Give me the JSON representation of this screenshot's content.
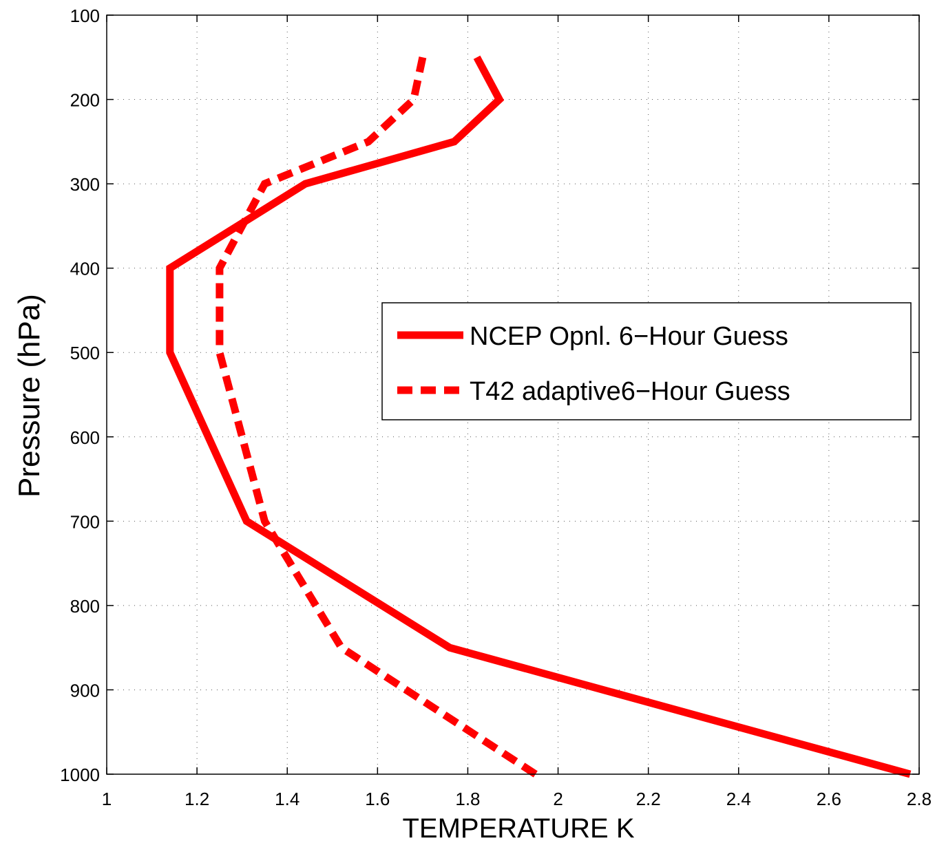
{
  "chart_data": {
    "type": "line",
    "title": "",
    "xlabel": "TEMPERATURE K",
    "ylabel": "Pressure (hPa)",
    "xlim": [
      1,
      2.8
    ],
    "ylim": [
      100,
      1000
    ],
    "y_reversed": true,
    "grid": true,
    "xticks": [
      1,
      1.2,
      1.4,
      1.6,
      1.8,
      2,
      2.2,
      2.4,
      2.6,
      2.8
    ],
    "xtick_labels": [
      "1",
      "1.2",
      "1.4",
      "1.6",
      "1.8",
      "2",
      "2.2",
      "2.4",
      "2.6",
      "2.8"
    ],
    "yticks": [
      100,
      200,
      300,
      400,
      500,
      600,
      700,
      800,
      900,
      1000
    ],
    "ytick_labels": [
      "100",
      "200",
      "300",
      "400",
      "500",
      "600",
      "700",
      "800",
      "900",
      "1000"
    ],
    "legend_position": "center-right",
    "series": [
      {
        "name": "NCEP Opnl.  6−Hour Guess",
        "style": "solid",
        "color": "#ff0000",
        "points": [
          {
            "x": 1.82,
            "y": 150
          },
          {
            "x": 1.87,
            "y": 200
          },
          {
            "x": 1.77,
            "y": 250
          },
          {
            "x": 1.44,
            "y": 300
          },
          {
            "x": 1.14,
            "y": 400
          },
          {
            "x": 1.14,
            "y": 500
          },
          {
            "x": 1.31,
            "y": 700
          },
          {
            "x": 1.76,
            "y": 850
          },
          {
            "x": 2.78,
            "y": 1000
          }
        ]
      },
      {
        "name": "T42 adaptive6−Hour Guess",
        "style": "dashed",
        "color": "#ff0000",
        "points": [
          {
            "x": 1.7,
            "y": 150
          },
          {
            "x": 1.68,
            "y": 200
          },
          {
            "x": 1.58,
            "y": 250
          },
          {
            "x": 1.35,
            "y": 300
          },
          {
            "x": 1.25,
            "y": 400
          },
          {
            "x": 1.25,
            "y": 500
          },
          {
            "x": 1.35,
            "y": 700
          },
          {
            "x": 1.52,
            "y": 850
          },
          {
            "x": 1.95,
            "y": 1000
          }
        ]
      }
    ]
  }
}
